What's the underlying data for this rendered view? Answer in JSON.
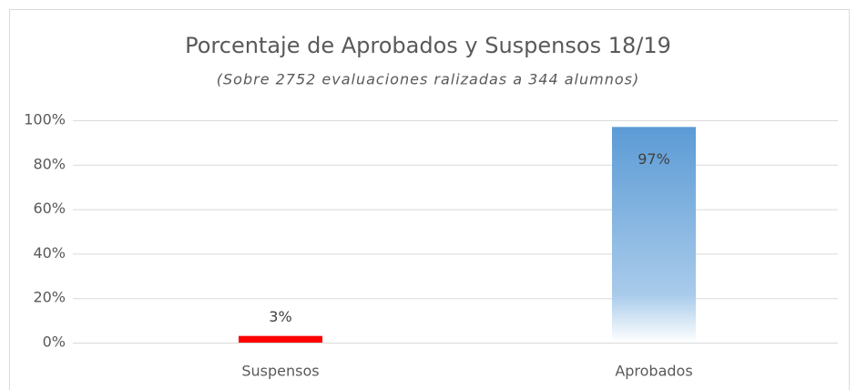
{
  "chart_data": {
    "type": "bar",
    "title": "Porcentaje de Aprobados y Suspensos 18/19",
    "subtitle": "(Sobre 2752 evaluaciones ralizadas a 344 alumnos)",
    "categories": [
      "Suspensos",
      "Aprobados"
    ],
    "values": [
      3,
      97
    ],
    "value_labels": [
      "3%",
      "97%"
    ],
    "colors": [
      "#ff0000",
      "#5b9bd5"
    ],
    "ylim": [
      0,
      100
    ],
    "yticks": [
      {
        "value": 0,
        "label": "0%"
      },
      {
        "value": 20,
        "label": "20%"
      },
      {
        "value": 40,
        "label": "40%"
      },
      {
        "value": 60,
        "label": "60%"
      },
      {
        "value": 80,
        "label": "80%"
      },
      {
        "value": 100,
        "label": "100%"
      }
    ],
    "grid": true
  }
}
